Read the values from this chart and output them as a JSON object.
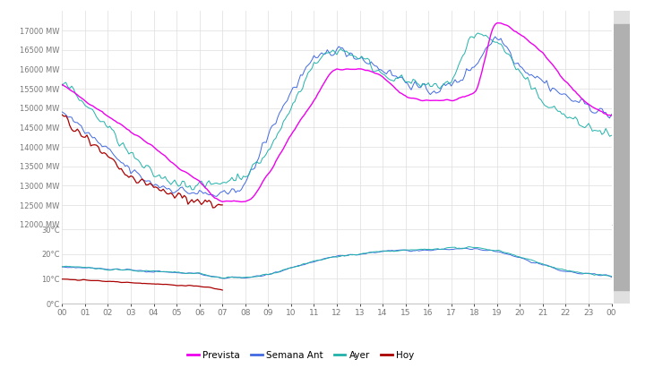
{
  "colors": {
    "prevista": "#ee00ee",
    "semana_ant": "#4169e1",
    "ayer": "#20b2aa",
    "hoy": "#aa0000"
  },
  "mw_ylim": [
    12000,
    17500
  ],
  "mw_yticks": [
    12000,
    12500,
    13000,
    13500,
    14000,
    14500,
    15000,
    15500,
    16000,
    16500,
    17000
  ],
  "temp_ylim": [
    0,
    32
  ],
  "temp_yticks": [
    0,
    10,
    20,
    30
  ],
  "xtick_labels": [
    "00",
    "01",
    "02",
    "03",
    "04",
    "05",
    "06",
    "07",
    "08",
    "09",
    "10",
    "11",
    "12",
    "13",
    "14",
    "15",
    "16",
    "17",
    "18",
    "19",
    "20",
    "21",
    "22",
    "23",
    "00"
  ],
  "legend_labels": [
    "Prevista",
    "Semana Ant",
    "Ayer",
    "Hoy"
  ],
  "background_color": "#ffffff",
  "grid_color": "#dddddd",
  "scrollbar_color": "#c0c0c0",
  "noise_scale_mw": 80,
  "noise_scale_temp": 0.3
}
